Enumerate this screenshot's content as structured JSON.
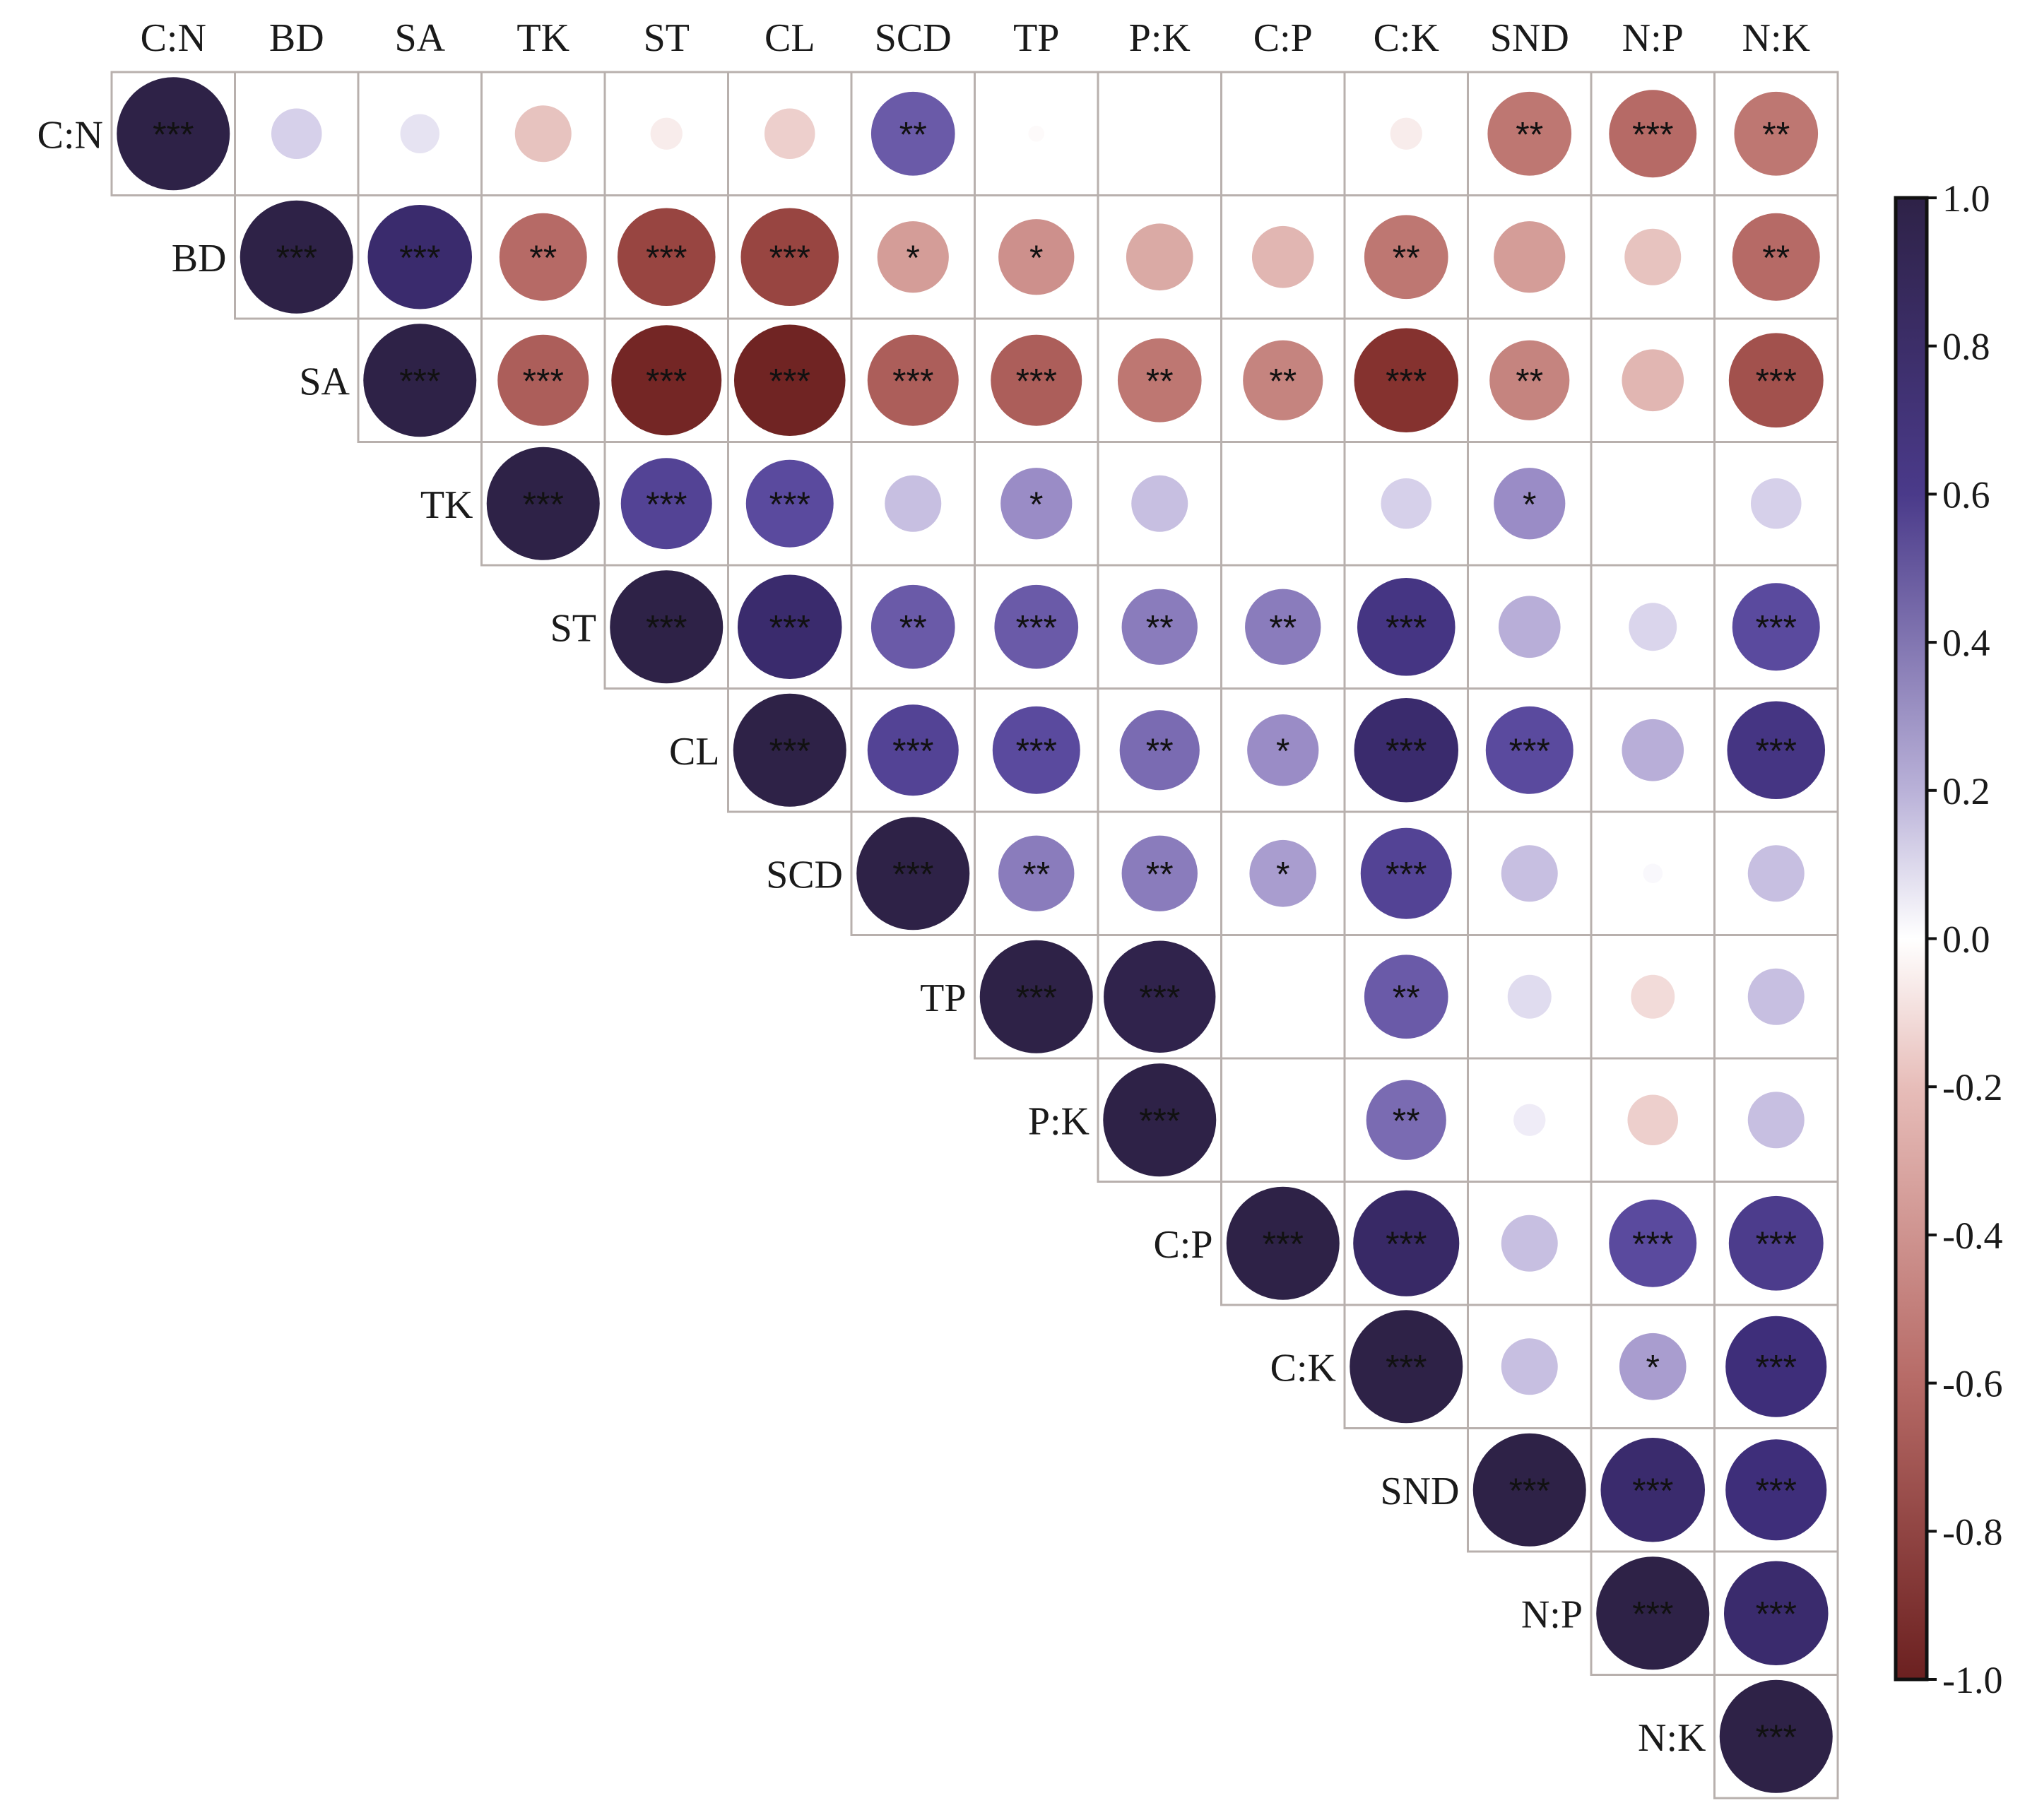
{
  "chart_data": {
    "type": "heatmap",
    "title": "",
    "variables": [
      "C:N",
      "BD",
      "SA",
      "TK",
      "ST",
      "CL",
      "SCD",
      "TP",
      "P:K",
      "C:P",
      "C:K",
      "SND",
      "N:P",
      "N:K"
    ],
    "layout": "upper-triangle correlation matrix; circle size and color encode correlation coefficient",
    "correlations": [
      [
        1.0,
        0.2,
        0.12,
        -0.25,
        -0.08,
        -0.2,
        0.55,
        -0.02,
        0.0,
        0.0,
        -0.08,
        -0.55,
        -0.6,
        -0.55
      ],
      [
        null,
        1.0,
        0.85,
        -0.6,
        -0.75,
        -0.75,
        -0.4,
        -0.45,
        -0.35,
        -0.3,
        -0.55,
        -0.4,
        -0.25,
        -0.6
      ],
      [
        null,
        null,
        1.0,
        -0.65,
        -0.95,
        -0.97,
        -0.65,
        -0.65,
        -0.55,
        -0.5,
        -0.85,
        -0.5,
        -0.3,
        -0.7
      ],
      [
        null,
        null,
        null,
        1.0,
        0.65,
        0.6,
        0.25,
        0.4,
        0.25,
        0.0,
        0.2,
        0.4,
        0.0,
        0.2
      ],
      [
        null,
        null,
        null,
        null,
        1.0,
        0.85,
        0.55,
        0.55,
        0.45,
        0.45,
        0.75,
        0.3,
        0.18,
        0.6
      ],
      [
        null,
        null,
        null,
        null,
        null,
        1.0,
        0.65,
        0.6,
        0.5,
        0.4,
        0.85,
        0.6,
        0.3,
        0.75
      ],
      [
        null,
        null,
        null,
        null,
        null,
        null,
        1.0,
        0.45,
        0.45,
        0.35,
        0.65,
        0.25,
        0.03,
        0.25
      ],
      [
        null,
        null,
        null,
        null,
        null,
        null,
        null,
        1.0,
        0.98,
        0.0,
        0.55,
        0.15,
        -0.15,
        0.25
      ],
      [
        null,
        null,
        null,
        null,
        null,
        null,
        null,
        null,
        1.0,
        0.0,
        0.5,
        0.08,
        -0.2,
        0.25
      ],
      [
        null,
        null,
        null,
        null,
        null,
        null,
        null,
        null,
        null,
        1.0,
        0.88,
        0.25,
        0.6,
        0.7
      ],
      [
        null,
        null,
        null,
        null,
        null,
        null,
        null,
        null,
        null,
        null,
        1.0,
        0.25,
        0.35,
        0.8
      ],
      [
        null,
        null,
        null,
        null,
        null,
        null,
        null,
        null,
        null,
        null,
        null,
        1.0,
        0.85,
        0.8
      ],
      [
        null,
        null,
        null,
        null,
        null,
        null,
        null,
        null,
        null,
        null,
        null,
        null,
        1.0,
        0.85
      ],
      [
        null,
        null,
        null,
        null,
        null,
        null,
        null,
        null,
        null,
        null,
        null,
        null,
        null,
        1.0
      ]
    ],
    "significance": [
      [
        "***",
        "",
        "",
        "",
        "",
        "",
        "**",
        "",
        "",
        "",
        "",
        "**",
        "***",
        "**"
      ],
      [
        null,
        "***",
        "***",
        "**",
        "***",
        "***",
        "*",
        "*",
        "",
        "",
        "**",
        "",
        "",
        "**"
      ],
      [
        null,
        null,
        "***",
        "***",
        "***",
        "***",
        "***",
        "***",
        "**",
        "**",
        "***",
        "**",
        "",
        "***"
      ],
      [
        null,
        null,
        null,
        "***",
        "***",
        "***",
        "",
        "*",
        "",
        "",
        "",
        "*",
        "",
        ""
      ],
      [
        null,
        null,
        null,
        null,
        "***",
        "***",
        "**",
        "***",
        "**",
        "**",
        "***",
        "",
        "",
        "***"
      ],
      [
        null,
        null,
        null,
        null,
        null,
        "***",
        "***",
        "***",
        "**",
        "*",
        "***",
        "***",
        "",
        "***"
      ],
      [
        null,
        null,
        null,
        null,
        null,
        null,
        "***",
        "**",
        "**",
        "*",
        "***",
        "",
        "",
        ""
      ],
      [
        null,
        null,
        null,
        null,
        null,
        null,
        null,
        "***",
        "***",
        "",
        "**",
        "",
        "",
        ""
      ],
      [
        null,
        null,
        null,
        null,
        null,
        null,
        null,
        null,
        "***",
        "",
        "**",
        "",
        "",
        ""
      ],
      [
        null,
        null,
        null,
        null,
        null,
        null,
        null,
        null,
        null,
        "***",
        "***",
        "",
        "***",
        "***"
      ],
      [
        null,
        null,
        null,
        null,
        null,
        null,
        null,
        null,
        null,
        null,
        "***",
        "",
        "*",
        "***"
      ],
      [
        null,
        null,
        null,
        null,
        null,
        null,
        null,
        null,
        null,
        null,
        null,
        "***",
        "***",
        "***"
      ],
      [
        null,
        null,
        null,
        null,
        null,
        null,
        null,
        null,
        null,
        null,
        null,
        null,
        "***",
        "***"
      ],
      [
        null,
        null,
        null,
        null,
        null,
        null,
        null,
        null,
        null,
        null,
        null,
        null,
        null,
        "***"
      ]
    ],
    "colorbar": {
      "range": [
        -1.0,
        1.0
      ],
      "ticks": [
        "1.0",
        "0.8",
        "0.6",
        "0.4",
        "0.2",
        "0.0",
        "-0.2",
        "-0.4",
        "-0.6",
        "-0.8",
        "-1.0"
      ],
      "colors": {
        "positive_max": "#2e2247",
        "positive_mid": "#5a4a9e",
        "zero": "#ffffff",
        "negative_mid": "#b66a66",
        "negative_max": "#6b2020"
      }
    },
    "grid_color": "#b8b0ad",
    "legend_position": "right"
  }
}
